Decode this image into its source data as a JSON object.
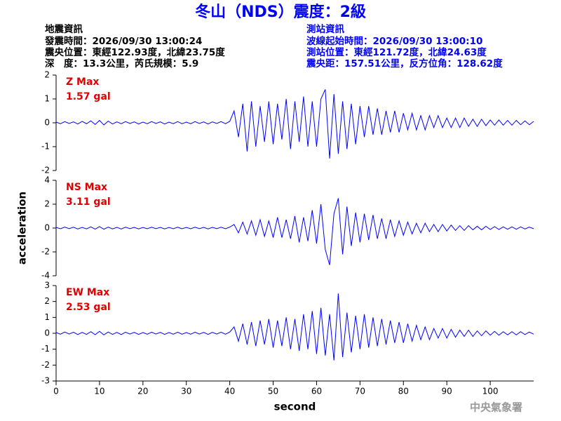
{
  "title": "冬山（NDS）震度：2級",
  "info_left": [
    "地震資訊",
    "發震時間：2026/09/30 13:00:24",
    "震央位置：東經122.93度，北緯23.75度",
    "深　度：13.3公里，芮氏規模：5.9"
  ],
  "info_right": [
    "測站資訊",
    "波線起始時間：2026/09/30 13:00:10",
    "測站位置：東經121.72度，北緯24.63度",
    "震央距：157.51公里，反方位角：128.62度"
  ],
  "footer": "中央氣象署",
  "chart_data": [
    {
      "type": "line",
      "annotations": [
        "Z Max",
        "1.57 gal"
      ],
      "color": "#0000ff",
      "x": [
        0,
        1,
        2,
        3,
        4,
        5,
        6,
        7,
        8,
        9,
        10,
        11,
        12,
        13,
        14,
        15,
        16,
        17,
        18,
        19,
        20,
        21,
        22,
        23,
        24,
        25,
        26,
        27,
        28,
        29,
        30,
        31,
        32,
        33,
        34,
        35,
        36,
        37,
        38,
        39,
        40,
        41,
        42,
        43,
        44,
        45,
        46,
        47,
        48,
        49,
        50,
        51,
        52,
        53,
        54,
        55,
        56,
        57,
        58,
        59,
        60,
        61,
        62,
        63,
        64,
        65,
        66,
        67,
        68,
        69,
        70,
        71,
        72,
        73,
        74,
        75,
        76,
        77,
        78,
        79,
        80,
        81,
        82,
        83,
        84,
        85,
        86,
        87,
        88,
        89,
        90,
        91,
        92,
        93,
        94,
        95,
        96,
        97,
        98,
        99,
        100,
        101,
        102,
        103,
        104,
        105,
        106,
        107,
        108,
        109,
        110
      ],
      "values": [
        0.03,
        -0.04,
        0.05,
        -0.03,
        0.04,
        -0.05,
        0.06,
        -0.04,
        0.08,
        -0.07,
        0.1,
        -0.09,
        0.07,
        -0.05,
        0.04,
        -0.04,
        0.05,
        -0.03,
        0.04,
        -0.05,
        0.03,
        -0.04,
        0.05,
        -0.03,
        0.04,
        -0.05,
        0.03,
        -0.04,
        0.05,
        -0.04,
        0.03,
        -0.04,
        0.05,
        -0.03,
        0.04,
        -0.05,
        0.04,
        -0.03,
        0.05,
        -0.04,
        0.06,
        0.5,
        -0.6,
        0.8,
        -1.2,
        0.9,
        -1.0,
        0.7,
        -0.8,
        0.9,
        -0.9,
        0.8,
        -0.7,
        1.0,
        -1.1,
        0.9,
        -0.8,
        1.1,
        -1.0,
        0.9,
        -1.0,
        1.0,
        1.4,
        -1.5,
        1.2,
        -1.3,
        0.9,
        -1.1,
        0.8,
        -0.9,
        0.7,
        -0.6,
        0.7,
        -0.5,
        0.6,
        -0.5,
        0.5,
        -0.4,
        0.5,
        -0.4,
        0.4,
        -0.3,
        0.4,
        -0.3,
        0.3,
        -0.3,
        0.3,
        -0.2,
        0.3,
        -0.2,
        0.2,
        -0.2,
        0.2,
        -0.2,
        0.2,
        -0.15,
        0.15,
        -0.15,
        0.15,
        -0.12,
        0.12,
        -0.1,
        0.12,
        -0.1,
        0.1,
        -0.1,
        0.1,
        -0.08,
        0.08,
        -0.08,
        0.06
      ],
      "xlim": [
        0,
        110
      ],
      "ylim": [
        -2,
        2
      ],
      "yticks": [
        -2,
        -1,
        0,
        1,
        2
      ]
    },
    {
      "type": "line",
      "annotations": [
        "NS Max",
        "3.11 gal"
      ],
      "color": "#0000ff",
      "ylabel": "acceleration",
      "x": [
        0,
        1,
        2,
        3,
        4,
        5,
        6,
        7,
        8,
        9,
        10,
        11,
        12,
        13,
        14,
        15,
        16,
        17,
        18,
        19,
        20,
        21,
        22,
        23,
        24,
        25,
        26,
        27,
        28,
        29,
        30,
        31,
        32,
        33,
        34,
        35,
        36,
        37,
        38,
        39,
        40,
        41,
        42,
        43,
        44,
        45,
        46,
        47,
        48,
        49,
        50,
        51,
        52,
        53,
        54,
        55,
        56,
        57,
        58,
        59,
        60,
        61,
        62,
        63,
        64,
        65,
        66,
        67,
        68,
        69,
        70,
        71,
        72,
        73,
        74,
        75,
        76,
        77,
        78,
        79,
        80,
        81,
        82,
        83,
        84,
        85,
        86,
        87,
        88,
        89,
        90,
        91,
        92,
        93,
        94,
        95,
        96,
        97,
        98,
        99,
        100,
        101,
        102,
        103,
        104,
        105,
        106,
        107,
        108,
        109,
        110
      ],
      "values": [
        0.05,
        -0.06,
        0.08,
        -0.05,
        0.07,
        -0.08,
        0.06,
        -0.07,
        0.1,
        -0.09,
        0.12,
        -0.1,
        0.08,
        -0.07,
        0.06,
        -0.08,
        0.07,
        -0.05,
        0.06,
        -0.07,
        0.05,
        -0.06,
        0.07,
        -0.05,
        0.06,
        -0.07,
        0.05,
        -0.06,
        0.07,
        -0.06,
        0.05,
        -0.06,
        0.07,
        -0.05,
        0.06,
        -0.07,
        0.06,
        -0.05,
        0.07,
        -0.06,
        0.08,
        0.3,
        -0.4,
        0.5,
        -0.5,
        0.6,
        -0.6,
        0.7,
        -0.7,
        0.6,
        -0.8,
        0.9,
        -0.8,
        0.7,
        -0.9,
        1.0,
        -1.2,
        0.9,
        -1.1,
        1.5,
        -1.3,
        2.0,
        -1.8,
        -3.1,
        1.2,
        2.5,
        -2.2,
        1.8,
        -1.5,
        1.3,
        -1.2,
        1.2,
        -1.0,
        1.1,
        -0.9,
        0.8,
        -0.9,
        0.7,
        -0.7,
        0.6,
        -0.6,
        0.5,
        -0.5,
        0.4,
        -0.4,
        0.4,
        -0.3,
        0.3,
        -0.3,
        0.3,
        -0.25,
        0.25,
        -0.2,
        0.2,
        -0.2,
        0.2,
        -0.15,
        0.15,
        -0.15,
        0.15,
        -0.12,
        0.12,
        -0.12,
        0.1,
        -0.1,
        0.1,
        -0.1,
        0.1,
        -0.08,
        0.08,
        -0.06
      ],
      "xlim": [
        0,
        110
      ],
      "ylim": [
        -4,
        4
      ],
      "yticks": [
        -4,
        -2,
        0,
        2,
        4
      ]
    },
    {
      "type": "line",
      "annotations": [
        "EW Max",
        "2.53 gal"
      ],
      "color": "#0000ff",
      "xlabel": "second",
      "x": [
        0,
        1,
        2,
        3,
        4,
        5,
        6,
        7,
        8,
        9,
        10,
        11,
        12,
        13,
        14,
        15,
        16,
        17,
        18,
        19,
        20,
        21,
        22,
        23,
        24,
        25,
        26,
        27,
        28,
        29,
        30,
        31,
        32,
        33,
        34,
        35,
        36,
        37,
        38,
        39,
        40,
        41,
        42,
        43,
        44,
        45,
        46,
        47,
        48,
        49,
        50,
        51,
        52,
        53,
        54,
        55,
        56,
        57,
        58,
        59,
        60,
        61,
        62,
        63,
        64,
        65,
        66,
        67,
        68,
        69,
        70,
        71,
        72,
        73,
        74,
        75,
        76,
        77,
        78,
        79,
        80,
        81,
        82,
        83,
        84,
        85,
        86,
        87,
        88,
        89,
        90,
        91,
        92,
        93,
        94,
        95,
        96,
        97,
        98,
        99,
        100,
        101,
        102,
        103,
        104,
        105,
        106,
        107,
        108,
        109,
        110
      ],
      "values": [
        0.05,
        -0.06,
        0.08,
        -0.05,
        0.07,
        -0.08,
        0.06,
        -0.07,
        0.1,
        -0.09,
        0.12,
        -0.1,
        0.08,
        -0.07,
        0.06,
        -0.08,
        0.07,
        -0.05,
        0.06,
        -0.07,
        0.05,
        -0.06,
        0.07,
        -0.05,
        0.06,
        -0.07,
        0.05,
        -0.06,
        0.07,
        -0.06,
        0.05,
        -0.06,
        0.07,
        -0.05,
        0.06,
        -0.07,
        0.06,
        -0.05,
        0.07,
        -0.06,
        0.08,
        0.4,
        -0.5,
        0.6,
        -0.7,
        0.7,
        -0.8,
        0.8,
        -0.7,
        0.9,
        -0.9,
        0.8,
        -0.8,
        1.0,
        -1.0,
        0.9,
        -1.1,
        1.2,
        -1.0,
        1.4,
        -1.3,
        1.6,
        -1.4,
        1.2,
        -1.7,
        2.5,
        -1.5,
        1.3,
        -1.2,
        1.1,
        -1.0,
        1.2,
        -0.9,
        1.0,
        -0.8,
        0.9,
        -0.7,
        0.8,
        -0.6,
        0.7,
        -0.6,
        0.6,
        -0.5,
        0.5,
        -0.4,
        0.4,
        -0.4,
        0.3,
        -0.3,
        0.3,
        -0.3,
        0.25,
        -0.25,
        0.2,
        -0.2,
        0.2,
        -0.2,
        0.15,
        -0.15,
        0.15,
        -0.12,
        0.12,
        -0.12,
        0.1,
        -0.1,
        0.1,
        -0.1,
        0.1,
        -0.08,
        0.08,
        -0.06
      ],
      "xlim": [
        0,
        110
      ],
      "ylim": [
        -3,
        3
      ],
      "yticks": [
        -3,
        -2,
        -1,
        0,
        1,
        2,
        3
      ],
      "xticks": [
        0,
        10,
        20,
        30,
        40,
        50,
        60,
        70,
        80,
        90,
        100
      ]
    }
  ]
}
